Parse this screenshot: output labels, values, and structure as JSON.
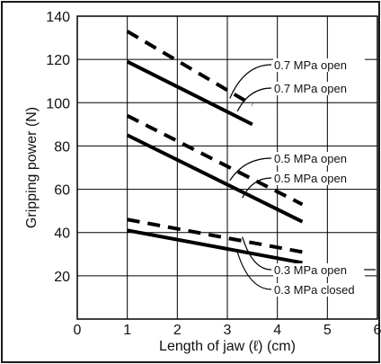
{
  "chart_data": {
    "type": "line",
    "xlabel": "Length of jaw (ℓ) (cm)",
    "ylabel": "Gripping power (N)",
    "xlim": [
      0,
      6
    ],
    "ylim": [
      0,
      140
    ],
    "xticks": [
      "0",
      "1",
      "2",
      "3",
      "4",
      "5",
      "6"
    ],
    "yticks": [
      "20",
      "40",
      "60",
      "80",
      "100",
      "120",
      "140"
    ],
    "grid": true,
    "series": [
      {
        "name": "0.7 MPa open",
        "style": "dashed",
        "x": [
          1,
          3.5
        ],
        "y": [
          133,
          99
        ]
      },
      {
        "name": "0.7 MPa open",
        "style": "solid",
        "x": [
          1,
          3.5
        ],
        "y": [
          119,
          90
        ]
      },
      {
        "name": "0.5 MPa open",
        "style": "dashed",
        "x": [
          1,
          4.5
        ],
        "y": [
          94,
          53
        ]
      },
      {
        "name": "0.5 MPa open",
        "style": "solid",
        "x": [
          1,
          4.5
        ],
        "y": [
          85,
          45
        ]
      },
      {
        "name": "0.3 MPa open",
        "style": "dashed",
        "x": [
          1,
          4.5
        ],
        "y": [
          46,
          31
        ]
      },
      {
        "name": "0.3 MPa closed",
        "style": "solid",
        "x": [
          1,
          4.5
        ],
        "y": [
          41,
          26
        ]
      }
    ]
  },
  "annotations": [
    {
      "text": "0.7 MPa open",
      "series": 0
    },
    {
      "text": "0.7 MPa open",
      "series": 1
    },
    {
      "text": "0.5 MPa open",
      "series": 2
    },
    {
      "text": "0.5 MPa open",
      "series": 3
    },
    {
      "text": "0.3 MPa open",
      "series": 4
    },
    {
      "text": "0.3 MPa closed",
      "series": 5
    }
  ],
  "colors": {
    "line": "#000000",
    "grid": "#000000",
    "frame_border": "#1a1a1a",
    "background": "#ffffff"
  }
}
